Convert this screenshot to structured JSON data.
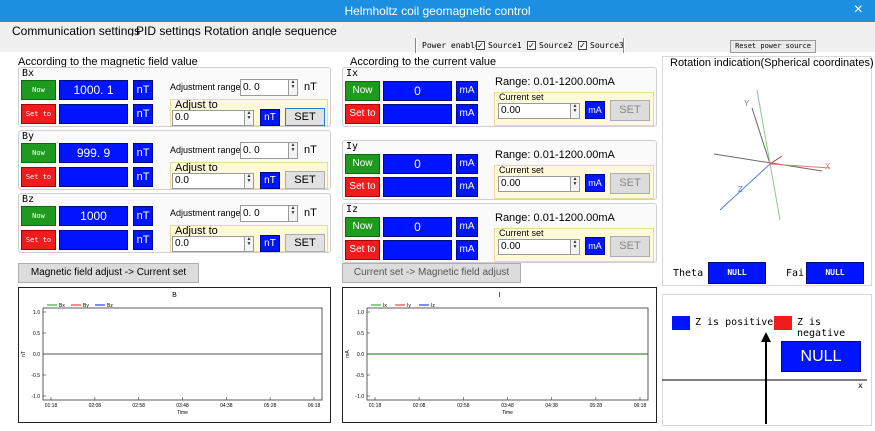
{
  "window": {
    "title": "Helmholtz coil geomagnetic control",
    "close_glyph": "×"
  },
  "menu": [
    "Communication settings",
    "PID settings",
    "Rotation angle sequence"
  ],
  "toolbar": {
    "power_enable": "Power enable",
    "sources": [
      "Source1",
      "Source2",
      "Source3"
    ],
    "reset_label": "Reset power source",
    "check_mark": "✓"
  },
  "left": {
    "title": "According to the magnetic field value",
    "now_label": "Now",
    "set_label": "Set to",
    "unit": "nT",
    "adjust_range_label": "Adjustment range",
    "adjust_to_label": "Adjust to",
    "set_button": "SET",
    "axes": [
      {
        "name": "Bx",
        "now": "1000. 1",
        "range": "0. 0",
        "adjust": "0.0"
      },
      {
        "name": "By",
        "now": "999. 9",
        "range": "0. 0",
        "adjust": "0.0"
      },
      {
        "name": "Bz",
        "now": "1000",
        "range": "0. 0",
        "adjust": "0.0"
      }
    ],
    "transfer_button": "Magnetic field adjust -> Current set"
  },
  "middle": {
    "title": "According to the current value",
    "now_label": "Now",
    "set_label": "Set to",
    "unit": "mA",
    "range_label": "Range: 0.01-1200.00mA",
    "current_set_label": "Current set",
    "set_button": "SET",
    "axes": [
      {
        "name": "Ix",
        "now": "0",
        "current": "0.00"
      },
      {
        "name": "Iy",
        "now": "0",
        "current": "0.00"
      },
      {
        "name": "Iz",
        "now": "0",
        "current": "0.00"
      }
    ],
    "transfer_button": "Current set -> Magnetic field adjust"
  },
  "right": {
    "title": "Rotation indication(Spherical coordinates)",
    "axis_labels": {
      "x": "X",
      "y": "Y",
      "z": "Z"
    },
    "theta_label": "Theta",
    "theta_value": "NULL",
    "fai_label": "Fai",
    "fai_value": "NULL",
    "z_positive": "Z is positive",
    "z_negative": "Z is negative",
    "null_display": "NULL",
    "colors": {
      "positive": "#0015ff",
      "negative": "#ee1c1c"
    }
  },
  "charts": [
    {
      "id": "B",
      "chart_data": {
        "type": "line",
        "title": "B",
        "xlabel": "Time",
        "ylabel": "nT",
        "legend": [
          "Bx",
          "By",
          "Bz"
        ],
        "series_colors": [
          "#1e9a1e",
          "#ee1c1c",
          "#0015ff"
        ],
        "x_ticks": [
          "01:18",
          "02:08",
          "02:58",
          "03:48",
          "04:38",
          "05:28",
          "06:18"
        ],
        "y_ticks": [
          "1.0",
          "0.5",
          "0.0",
          "-0.5",
          "-1.0"
        ],
        "ylim": [
          -1.0,
          1.0
        ],
        "series": [
          {
            "name": "Bx",
            "values": [
              0,
              0,
              0,
              0,
              0,
              0,
              0
            ]
          }
        ]
      }
    },
    {
      "id": "I",
      "chart_data": {
        "type": "line",
        "title": "I",
        "xlabel": "Time",
        "ylabel": "mA",
        "legend": [
          "Ix",
          "Iy",
          "Iz"
        ],
        "series_colors": [
          "#1e9a1e",
          "#ee1c1c",
          "#0015ff"
        ],
        "x_ticks": [
          "01:18",
          "02:08",
          "02:58",
          "03:48",
          "04:38",
          "05:28",
          "06:18"
        ],
        "y_ticks": [
          "1.0",
          "0.5",
          "0.0",
          "-0.5",
          "-1.0"
        ],
        "ylim": [
          -1.0,
          1.0
        ],
        "series": [
          {
            "name": "Ix",
            "values": [
              0,
              0,
              0,
              0,
              0,
              0,
              0
            ]
          }
        ]
      }
    }
  ]
}
